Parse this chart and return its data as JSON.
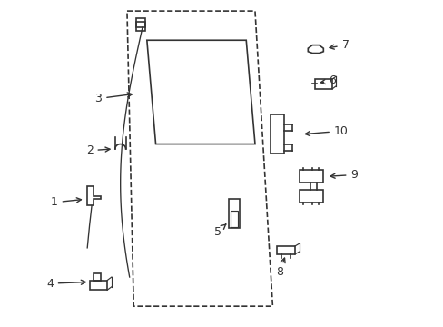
{
  "title": "",
  "background_color": "#ffffff",
  "line_color": "#333333",
  "figsize": [
    4.89,
    3.6
  ],
  "dpi": 100
}
